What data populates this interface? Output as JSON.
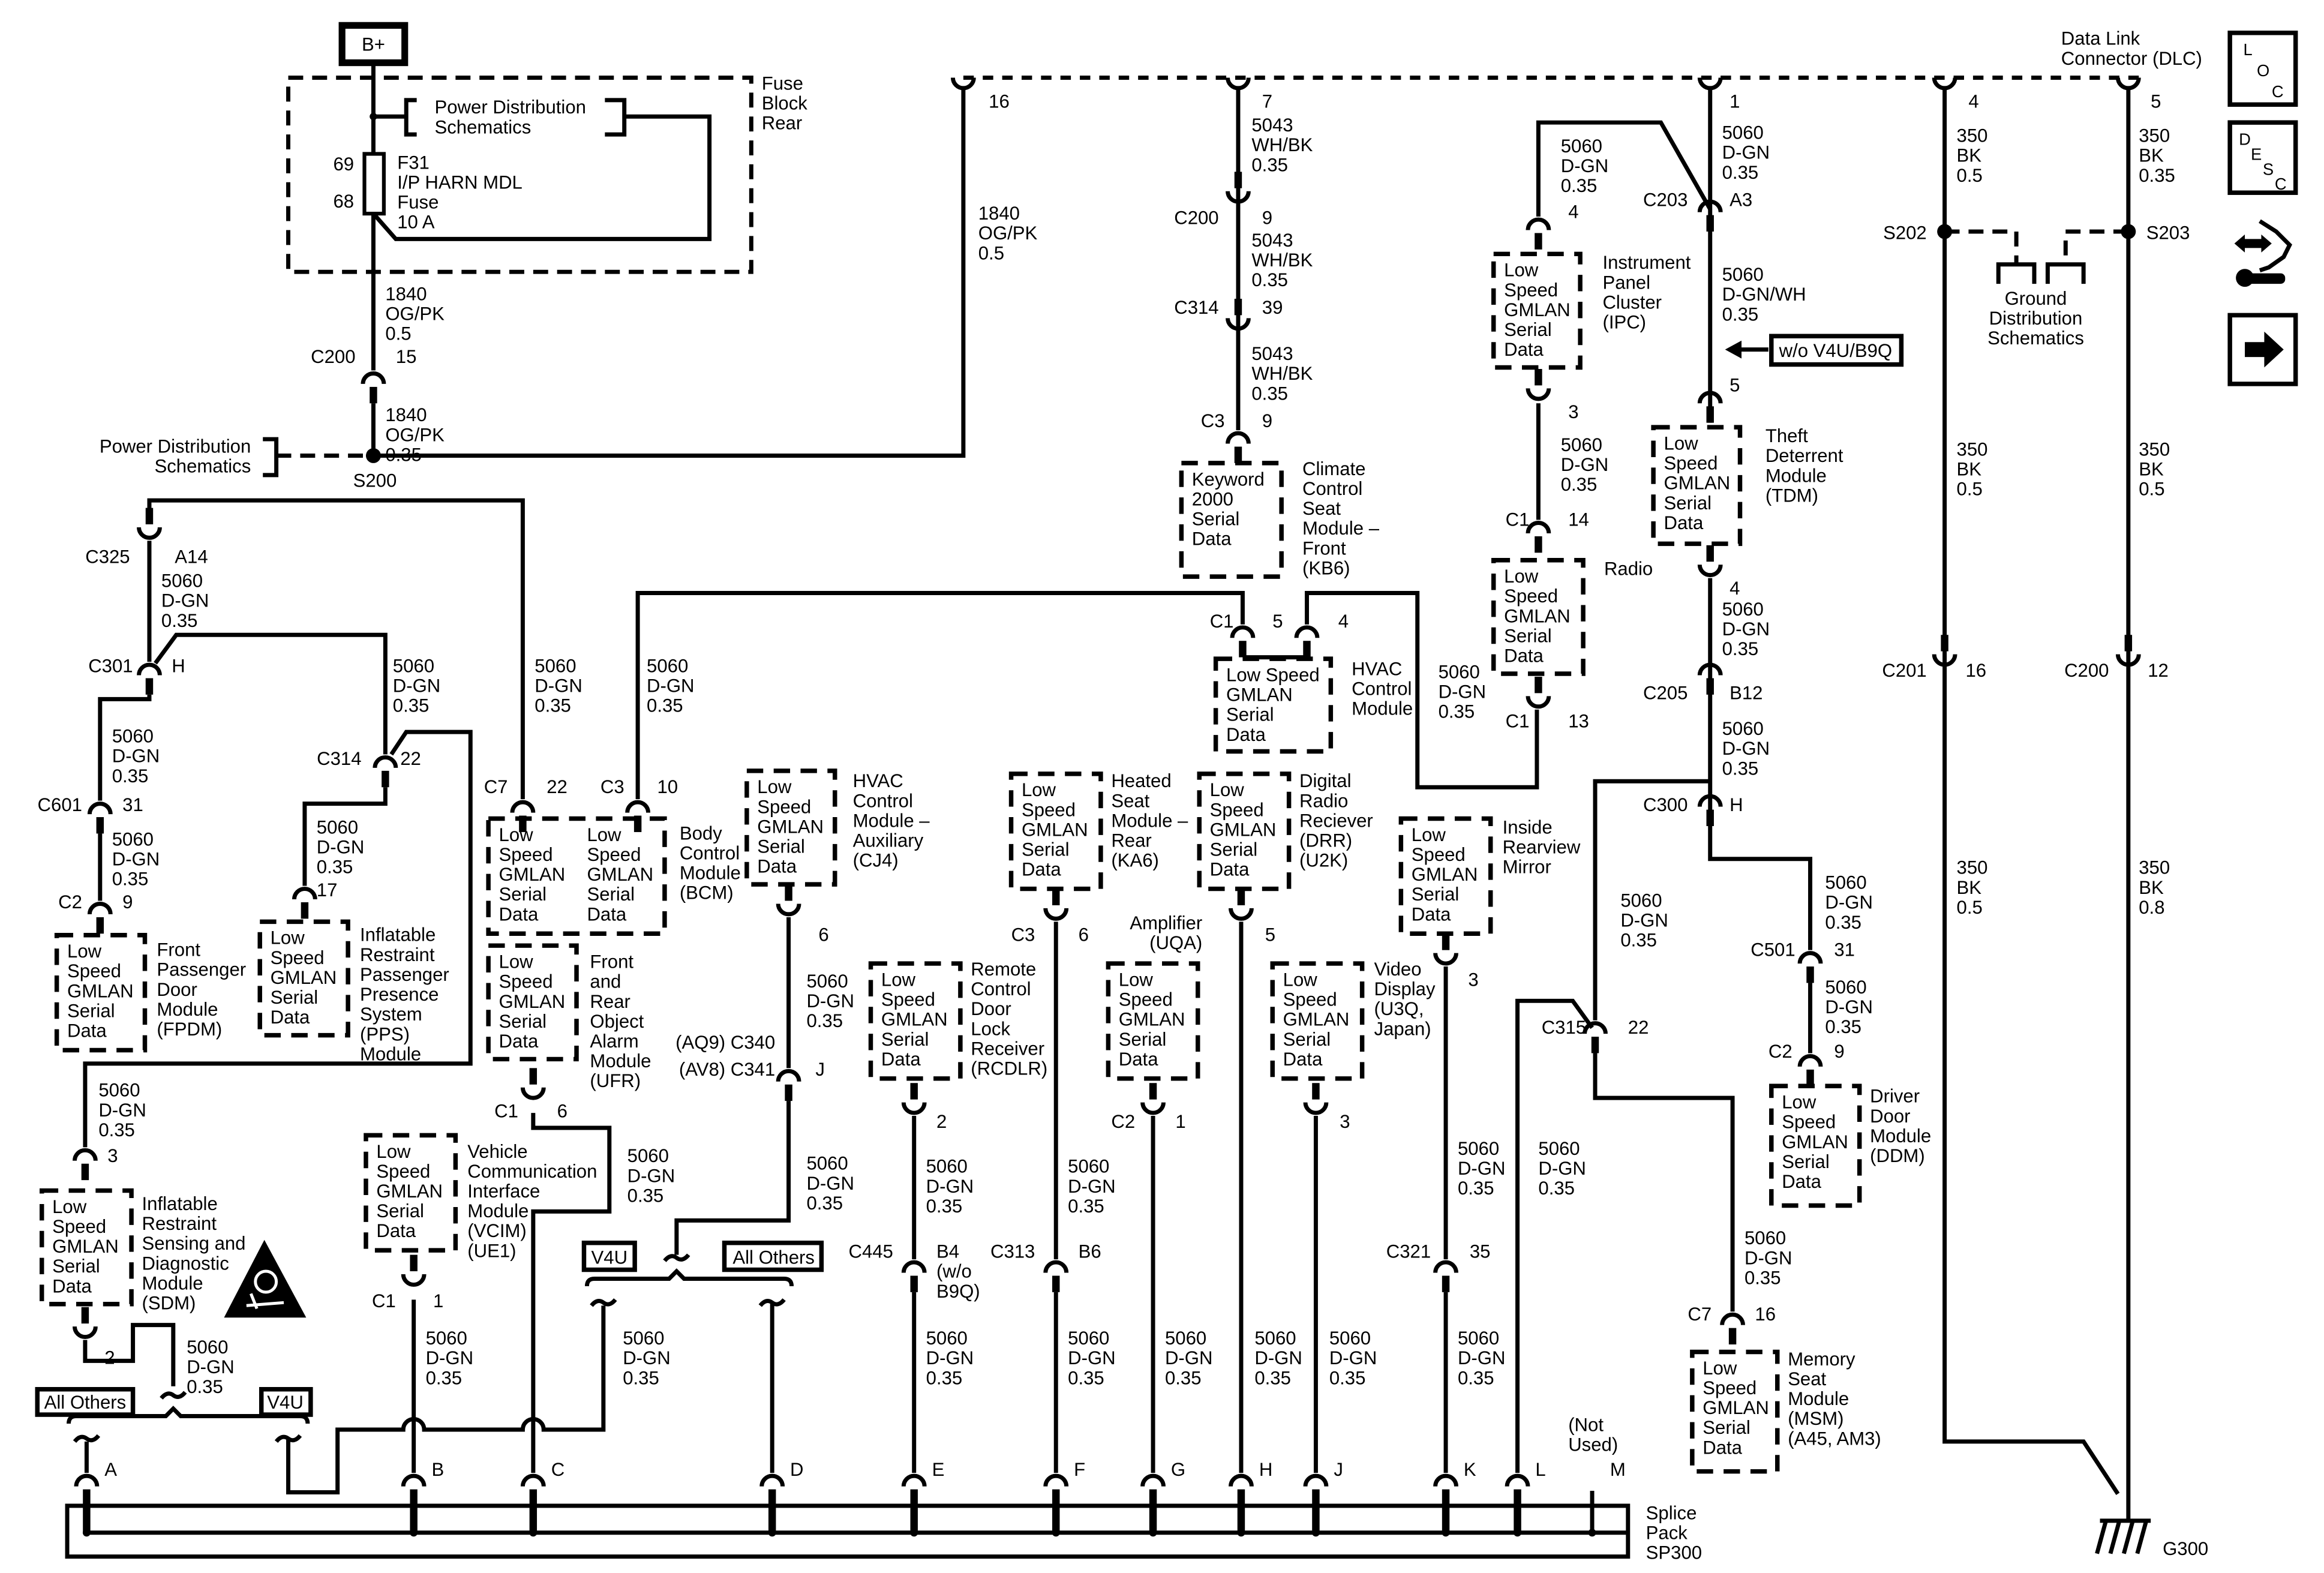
{
  "b_plus": "B+",
  "fuse_block": {
    "name": [
      "Fuse",
      "Block",
      "Rear"
    ],
    "power_ref": [
      "Power Distribution",
      "Schematics"
    ],
    "fuse_pin_in": "69",
    "fuse_pin_out": "68",
    "fuse": [
      "F31",
      "I/P HARN MDL",
      "Fuse",
      "10 A"
    ]
  },
  "power_ref_left": [
    "Power Distribution",
    "Schematics"
  ],
  "splices": {
    "s200": "S200",
    "s202": "S202",
    "s203": "S203"
  },
  "ground": {
    "ref": [
      "Ground",
      "Distribution",
      "Schematics"
    ],
    "g300": "G300"
  },
  "dlc": {
    "name": [
      "Data Link",
      "Connector (DLC)"
    ]
  },
  "options": {
    "wo_v4u_b9q": "w/o V4U/B9Q",
    "all_others_1": "All Others",
    "v4u_1": "V4U",
    "v4u_2": "V4U",
    "all_others_2": "All Others"
  },
  "side_icons": {
    "loc": [
      "L",
      "O",
      "C"
    ],
    "desc": [
      "D",
      "E",
      "S",
      "C"
    ],
    "icons": [
      "location-icon",
      "description-icon",
      "tool-repair-icon",
      "next-arrow-icon"
    ]
  },
  "splice_pack": {
    "name": [
      "Splice",
      "Pack",
      "SP300"
    ],
    "pins": [
      "A",
      "B",
      "C",
      "D",
      "E",
      "F",
      "G",
      "H",
      "J",
      "K",
      "L",
      "M"
    ],
    "not_used": [
      "(Not",
      "Used)"
    ]
  },
  "modules": {
    "fpdm": {
      "name": [
        "Front",
        "Passenger",
        "Door",
        "Module",
        "(FPDM)"
      ],
      "box": [
        "Low",
        "Speed",
        "GMLAN",
        "Serial",
        "Data"
      ]
    },
    "pps": {
      "name": [
        "Inflatable",
        "Restraint",
        "Passenger",
        "Presence",
        "System",
        "(PPS)",
        "Module"
      ],
      "box": [
        "Low",
        "Speed",
        "GMLAN",
        "Serial",
        "Data"
      ]
    },
    "sdm": {
      "name": [
        "Inflatable",
        "Restraint",
        "Sensing and",
        "Diagnostic",
        "Module",
        "(SDM)"
      ],
      "box": [
        "Low",
        "Speed",
        "GMLAN",
        "Serial",
        "Data"
      ]
    },
    "vcim": {
      "name": [
        "Vehicle",
        "Communication",
        "Interface",
        "Module",
        "(VCIM)",
        "(UE1)"
      ],
      "box": [
        "Low",
        "Speed",
        "GMLAN",
        "Serial",
        "Data"
      ]
    },
    "bcm": {
      "name": [
        "Body",
        "Control",
        "Module",
        "(BCM)"
      ],
      "box": [
        "Low",
        "Speed",
        "GMLAN",
        "Serial",
        "Data"
      ],
      "box_2": [
        "Low",
        "Speed",
        "GMLAN",
        "Serial",
        "Data"
      ]
    },
    "ufr": {
      "name": [
        "Front",
        "and",
        "Rear",
        "Object",
        "Alarm",
        "Module",
        "(UFR)"
      ],
      "box": [
        "Low",
        "Speed",
        "GMLAN",
        "Serial",
        "Data"
      ]
    },
    "cj4": {
      "name": [
        "HVAC",
        "Control",
        "Module –",
        "Auxiliary",
        "(CJ4)"
      ],
      "box": [
        "Low",
        "Speed",
        "GMLAN",
        "Serial",
        "Data"
      ]
    },
    "rcdlr": {
      "name": [
        "Remote",
        "Control",
        "Door",
        "Lock",
        "Receiver",
        "(RCDLR)"
      ],
      "box": [
        "Low",
        "Speed",
        "GMLAN",
        "Serial",
        "Data"
      ]
    },
    "ka6": {
      "name": [
        "Heated",
        "Seat",
        "Module –",
        "Rear",
        "(KA6)"
      ],
      "box": [
        "Low",
        "Speed",
        "GMLAN",
        "Serial",
        "Data"
      ]
    },
    "uqa": {
      "name": [
        "Amplifier",
        "(UQA)"
      ],
      "box": [
        "Low",
        "Speed",
        "GMLAN",
        "Serial",
        "Data"
      ]
    },
    "drr": {
      "name": [
        "Digital",
        "Radio",
        "Reciever",
        "(DRR)",
        "(U2K)"
      ],
      "box": [
        "Low",
        "Speed",
        "GMLAN",
        "Serial",
        "Data"
      ]
    },
    "u3q": {
      "name": [
        "Video",
        "Display",
        "(U3Q,",
        "Japan)"
      ],
      "box": [
        "Low",
        "Speed",
        "GMLAN",
        "Serial",
        "Data"
      ]
    },
    "mirror": {
      "name": [
        "Inside",
        "Rearview",
        "Mirror"
      ],
      "box": [
        "Low",
        "Speed",
        "GMLAN",
        "Serial",
        "Data"
      ]
    },
    "kb6": {
      "name": [
        "Climate",
        "Control",
        "Seat",
        "Module –",
        "Front",
        "(KB6)"
      ],
      "box": [
        "Keyword",
        "2000",
        "Serial",
        "Data"
      ]
    },
    "hvac": {
      "name": [
        "HVAC",
        "Control",
        "Module"
      ],
      "box": [
        "Low Speed",
        "GMLAN",
        "Serial",
        "Data"
      ]
    },
    "radio": {
      "name": [
        "Radio"
      ],
      "box": [
        "Low",
        "Speed",
        "GMLAN",
        "Serial",
        "Data"
      ]
    },
    "ipc": {
      "name": [
        "Instrument",
        "Panel",
        "Cluster",
        "(IPC)"
      ],
      "box": [
        "Low",
        "Speed",
        "GMLAN",
        "Serial",
        "Data"
      ]
    },
    "tdm": {
      "name": [
        "Theft",
        "Deterrent",
        "Module",
        "(TDM)"
      ],
      "box": [
        "Low",
        "Speed",
        "GMLAN",
        "Serial",
        "Data"
      ]
    },
    "ddm": {
      "name": [
        "Driver",
        "Door",
        "Module",
        "(DDM)"
      ],
      "box": [
        "Low",
        "Speed",
        "GMLAN",
        "Serial",
        "Data"
      ]
    },
    "msm": {
      "name": [
        "Memory",
        "Seat",
        "Module",
        "(MSM)",
        "(A45, AM3)"
      ],
      "box": [
        "Low",
        "Speed",
        "GMLAN",
        "Serial",
        "Data"
      ]
    }
  },
  "connectors": {
    "c200_15": {
      "id": "C200",
      "pin": "15"
    },
    "c325_a14": {
      "id": "C325",
      "pin": "A14"
    },
    "c301_h": {
      "id": "C301",
      "pin": "H"
    },
    "c314_22": {
      "id": "C314",
      "pin": "22"
    },
    "c601_31": {
      "id": "C601",
      "pin": "31"
    },
    "fpdm_c2_9": {
      "id": "C2",
      "pin": "9"
    },
    "pps_17": {
      "pin": "17"
    },
    "sdm_3": {
      "pin": "3"
    },
    "sdm_2": {
      "pin": "2"
    },
    "bcm_c7_22": {
      "id": "C7",
      "pin": "22"
    },
    "bcm_c3_10": {
      "id": "C3",
      "pin": "10"
    },
    "ufr_c1_6": {
      "id": "C1",
      "pin": "6"
    },
    "c340": {
      "id": "(AQ9) C340"
    },
    "c341": {
      "id": "(AV8) C341",
      "pin": "J"
    },
    "cj4_6": {
      "pin": "6"
    },
    "vcim_c1_1": {
      "id": "C1",
      "pin": "1"
    },
    "rcdlr_2": {
      "pin": "2"
    },
    "c445_b4": {
      "id": "C445",
      "pin": [
        "B4",
        "(w/o",
        "B9Q)"
      ]
    },
    "ka6_c3_6": {
      "id": "C3",
      "pin": "6"
    },
    "c313_b6": {
      "id": "C313",
      "pin": "B6"
    },
    "uqa_c2_1": {
      "id": "C2",
      "pin": "1"
    },
    "drr_5": {
      "pin": "5"
    },
    "u3q_3": {
      "pin": "3"
    },
    "mirror_3": {
      "pin": "3"
    },
    "c321_35": {
      "id": "C321",
      "pin": "35"
    },
    "c315_22": {
      "id": "C315",
      "pin": "22"
    },
    "msm_c7_16": {
      "id": "C7",
      "pin": "16"
    },
    "dlc_16": {
      "pin": "16"
    },
    "dlc_7": {
      "pin": "7"
    },
    "dlc_1": {
      "pin": "1"
    },
    "dlc_4": {
      "pin": "4"
    },
    "dlc_5": {
      "pin": "5"
    },
    "kb6_c200_9": {
      "id": "C200",
      "pin": "9"
    },
    "kb6_c314_39": {
      "id": "C314",
      "pin": "39"
    },
    "kb6_c3_9": {
      "id": "C3",
      "pin": "9"
    },
    "hvac_c1_5": {
      "id": "C1",
      "pin": "5"
    },
    "hvac_4": {
      "pin": "4"
    },
    "ipc_4": {
      "pin": "4"
    },
    "ipc_3": {
      "pin": "3"
    },
    "radio_c1_14": {
      "id": "C1",
      "pin": "14"
    },
    "radio_c1_13": {
      "id": "C1",
      "pin": "13"
    },
    "c203_a3": {
      "id": "C203",
      "pin": "A3"
    },
    "tdm_5": {
      "pin": "5"
    },
    "tdm_4": {
      "pin": "4"
    },
    "c205_b12": {
      "id": "C205",
      "pin": "B12"
    },
    "c300_h": {
      "id": "C300",
      "pin": "H"
    },
    "c501_31": {
      "id": "C501",
      "pin": "31"
    },
    "ddm_c2_9": {
      "id": "C2",
      "pin": "9"
    },
    "c201_16": {
      "id": "C201",
      "pin": "16"
    },
    "c200_12": {
      "id": "C200",
      "pin": "12"
    }
  },
  "wires": {
    "fuse_out": {
      "circuit": "1840",
      "color": "OG/PK",
      "size": "0.5"
    },
    "c200_out": {
      "circuit": "1840",
      "color": "OG/PK",
      "size": "0.35"
    },
    "s200_dlc": {
      "circuit": "1840",
      "color": "OG/PK",
      "size": "0.5"
    },
    "c325_c301": {
      "circuit": "5060",
      "color": "D-GN",
      "size": "0.35"
    },
    "c301_c601": {
      "circuit": "5060",
      "color": "D-GN",
      "size": "0.35"
    },
    "c601_fpdm": {
      "circuit": "5060",
      "color": "D-GN",
      "size": "0.35"
    },
    "c301_c314": {
      "circuit": "5060",
      "color": "D-GN",
      "size": "0.35"
    },
    "c314_pps": {
      "circuit": "5060",
      "color": "D-GN",
      "size": "0.35"
    },
    "c314_sdm": {
      "circuit": "5060",
      "color": "D-GN",
      "size": "0.35"
    },
    "sdm_a": {
      "circuit": "5060",
      "color": "D-GN",
      "size": "0.35"
    },
    "s200_bcm": {
      "circuit": "5060",
      "color": "D-GN",
      "size": "0.35"
    },
    "bcm_hvac": {
      "circuit": "5060",
      "color": "D-GN",
      "size": "0.35"
    },
    "ufr_c": {
      "circuit": "5060",
      "color": "D-GN",
      "size": "0.35"
    },
    "vcim_b": {
      "circuit": "5060",
      "color": "D-GN",
      "size": "0.35"
    },
    "option_c": {
      "circuit": "5060",
      "color": "D-GN",
      "size": "0.35"
    },
    "cj4_c340": {
      "circuit": "5060",
      "color": "D-GN",
      "size": "0.35"
    },
    "c341_option": {
      "circuit": "5060",
      "color": "D-GN",
      "size": "0.35"
    },
    "rcdlr_c445": {
      "circuit": "5060",
      "color": "D-GN",
      "size": "0.35"
    },
    "c445_e": {
      "circuit": "5060",
      "color": "D-GN",
      "size": "0.35"
    },
    "ka6_c313": {
      "circuit": "5060",
      "color": "D-GN",
      "size": "0.35"
    },
    "c313_f": {
      "circuit": "5060",
      "color": "D-GN",
      "size": "0.35"
    },
    "uqa_g": {
      "circuit": "5060",
      "color": "D-GN",
      "size": "0.35"
    },
    "drr_h": {
      "circuit": "5060",
      "color": "D-GN",
      "size": "0.35"
    },
    "u3q_j": {
      "circuit": "5060",
      "color": "D-GN",
      "size": "0.35"
    },
    "mirror_c321": {
      "circuit": "5060",
      "color": "D-GN",
      "size": "0.35"
    },
    "c321_k": {
      "circuit": "5060",
      "color": "D-GN",
      "size": "0.35"
    },
    "l_c315": {
      "circuit": "5060",
      "color": "D-GN",
      "size": "0.35"
    },
    "c300_c315": {
      "circuit": "5060",
      "color": "D-GN",
      "size": "0.35"
    },
    "c315_msm": {
      "circuit": "5060",
      "color": "D-GN",
      "size": "0.35"
    },
    "hvac_radio": {
      "circuit": "5060",
      "color": "D-GN",
      "size": "0.35"
    },
    "dlc_c200": {
      "circuit": "5043",
      "color": "WH/BK",
      "size": "0.35"
    },
    "c200_c314": {
      "circuit": "5043",
      "color": "WH/BK",
      "size": "0.35"
    },
    "c314_kb6": {
      "circuit": "5043",
      "color": "WH/BK",
      "size": "0.35"
    },
    "c203_ipc": {
      "circuit": "5060",
      "color": "D-GN",
      "size": "0.35"
    },
    "ipc_radio": {
      "circuit": "5060",
      "color": "D-GN",
      "size": "0.35"
    },
    "dlc_c203": {
      "circuit": "5060",
      "color": "D-GN",
      "size": "0.35"
    },
    "c203_tdm": {
      "circuit": "5060",
      "color": "D-GN/WH",
      "size": "0.35"
    },
    "tdm_c205": {
      "circuit": "5060",
      "color": "D-GN",
      "size": "0.35"
    },
    "c205_c300": {
      "circuit": "5060",
      "color": "D-GN",
      "size": "0.35"
    },
    "c300_c501": {
      "circuit": "5060",
      "color": "D-GN",
      "size": "0.35"
    },
    "c501_ddm": {
      "circuit": "5060",
      "color": "D-GN",
      "size": "0.35"
    },
    "dlc_s202": {
      "circuit": "350",
      "color": "BK",
      "size": "0.5"
    },
    "s202_c201": {
      "circuit": "350",
      "color": "BK",
      "size": "0.5"
    },
    "c201_g300": {
      "circuit": "350",
      "color": "BK",
      "size": "0.5"
    },
    "dlc_s203": {
      "circuit": "350",
      "color": "BK",
      "size": "0.35"
    },
    "s203_c200": {
      "circuit": "350",
      "color": "BK",
      "size": "0.5"
    },
    "c200_g300": {
      "circuit": "350",
      "color": "BK",
      "size": "0.8"
    }
  }
}
